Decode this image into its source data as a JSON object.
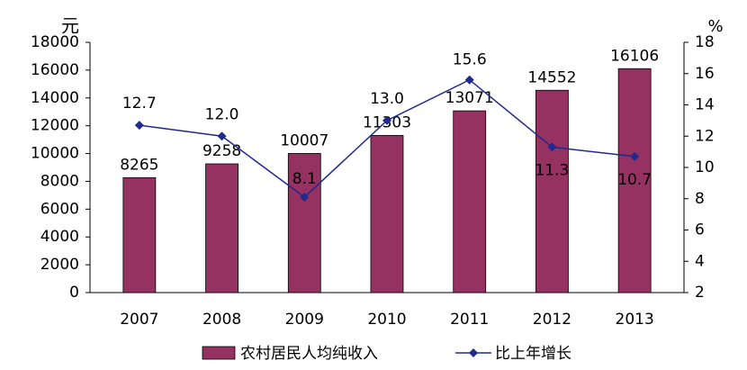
{
  "chart_data": {
    "type": "bar",
    "categories": [
      "2007",
      "2008",
      "2009",
      "2010",
      "2011",
      "2012",
      "2013"
    ],
    "y_axis_label": "元",
    "y2_axis_label": "%",
    "ylim": [
      0,
      18000
    ],
    "yticks": [
      0,
      2000,
      4000,
      6000,
      8000,
      10000,
      12000,
      14000,
      16000,
      18000
    ],
    "y2lim": [
      2,
      18
    ],
    "y2ticks": [
      2,
      4,
      6,
      8,
      10,
      12,
      14,
      16,
      18
    ],
    "grid": false,
    "series": [
      {
        "name": "农村居民人均纯收入",
        "type": "bar",
        "color": "#953262",
        "values": [
          8265,
          9258,
          10007,
          11303,
          13071,
          14552,
          16106
        ]
      },
      {
        "name": "比上年增长",
        "type": "line",
        "axis": "y2",
        "color": "#1f2a8c",
        "values": [
          12.7,
          12.0,
          8.1,
          13.0,
          15.6,
          11.3,
          10.7
        ],
        "value_labels": [
          "12.7",
          "12.0",
          "8.1",
          "13.0",
          "15.6",
          "11.3",
          "10.7"
        ]
      }
    ]
  }
}
